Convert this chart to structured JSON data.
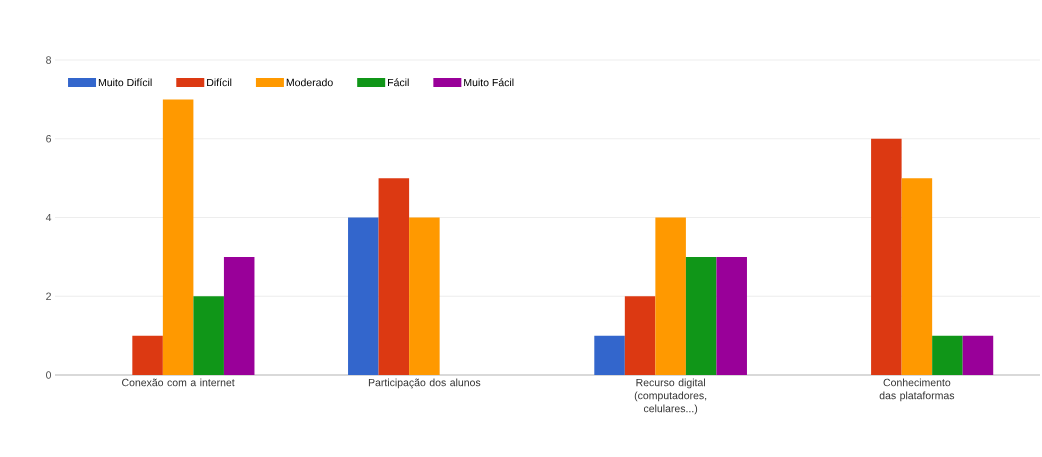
{
  "chart_data": {
    "type": "bar",
    "categories": [
      "Conexão com a internet",
      "Participação dos alunos",
      "Recurso digital (computadores, celulares...)",
      "Conhecimento das plataformas"
    ],
    "series": [
      {
        "name": "Muito Difícil",
        "color": "#3366cc",
        "values": [
          0,
          4,
          1,
          0
        ]
      },
      {
        "name": "Difícil",
        "color": "#dc3912",
        "values": [
          1,
          5,
          2,
          6
        ]
      },
      {
        "name": "Moderado",
        "color": "#ff9900",
        "values": [
          7,
          4,
          4,
          5
        ]
      },
      {
        "name": "Fácil",
        "color": "#109618",
        "values": [
          2,
          0,
          3,
          1
        ]
      },
      {
        "name": "Muito Fácil",
        "color": "#990099",
        "values": [
          3,
          0,
          3,
          1
        ]
      }
    ],
    "ylim": [
      0,
      8
    ],
    "yticks": [
      0,
      2,
      4,
      6,
      8
    ],
    "grid": "y",
    "legend": "top left"
  }
}
